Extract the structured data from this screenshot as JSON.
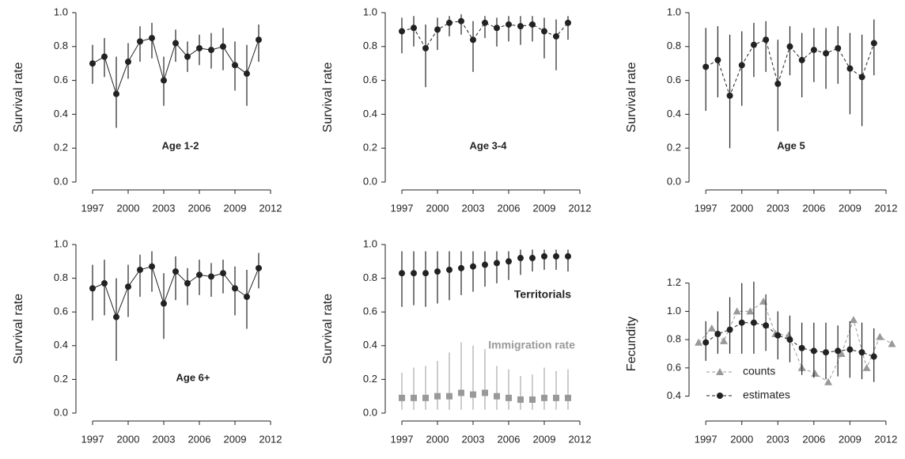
{
  "chart_data": [
    {
      "type": "line",
      "ylabel": "Survival rate",
      "annotation": "Age 1-2",
      "x": [
        1997,
        1998,
        1999,
        2000,
        2001,
        2002,
        2003,
        2004,
        2005,
        2006,
        2007,
        2008,
        2009,
        2010,
        2011
      ],
      "series": [
        {
          "color": "#222222",
          "marker": "circle",
          "line_style": "solid",
          "values": [
            0.7,
            0.74,
            0.52,
            0.71,
            0.83,
            0.85,
            0.6,
            0.82,
            0.74,
            0.79,
            0.78,
            0.8,
            0.69,
            0.64,
            0.84
          ],
          "lower": [
            0.58,
            0.62,
            0.32,
            0.61,
            0.71,
            0.73,
            0.45,
            0.71,
            0.65,
            0.69,
            0.67,
            0.66,
            0.54,
            0.45,
            0.71
          ],
          "upper": [
            0.81,
            0.85,
            0.74,
            0.82,
            0.92,
            0.94,
            0.74,
            0.9,
            0.83,
            0.87,
            0.88,
            0.91,
            0.83,
            0.81,
            0.93
          ]
        }
      ],
      "xlim": [
        1996,
        2012
      ],
      "xticks": [
        1997,
        2000,
        2003,
        2006,
        2009,
        2012
      ],
      "ylim": [
        0,
        1
      ],
      "yticks": [
        {
          "value": 0,
          "label": "0.0"
        },
        0.2,
        0.4,
        0.6,
        0.8,
        {
          "value": 1,
          "label": "1.0"
        }
      ]
    },
    {
      "type": "line",
      "ylabel": "Survival rate",
      "annotation": "Age 3-4",
      "x": [
        1997,
        1998,
        1999,
        2000,
        2001,
        2002,
        2003,
        2004,
        2005,
        2006,
        2007,
        2008,
        2009,
        2010,
        2011
      ],
      "series": [
        {
          "color": "#222222",
          "marker": "circle",
          "line_style": "dashed",
          "values": [
            0.89,
            0.91,
            0.79,
            0.9,
            0.94,
            0.95,
            0.84,
            0.94,
            0.91,
            0.93,
            0.92,
            0.93,
            0.89,
            0.86,
            0.94
          ],
          "lower": [
            0.76,
            0.8,
            0.56,
            0.78,
            0.86,
            0.87,
            0.65,
            0.85,
            0.8,
            0.83,
            0.81,
            0.83,
            0.73,
            0.66,
            0.84
          ],
          "upper": [
            0.97,
            0.98,
            0.93,
            0.97,
            0.98,
            0.99,
            0.95,
            0.98,
            0.97,
            0.98,
            0.98,
            0.98,
            0.97,
            0.96,
            0.98
          ]
        }
      ],
      "xlim": [
        1996,
        2012
      ],
      "xticks": [
        1997,
        2000,
        2003,
        2006,
        2009,
        2012
      ],
      "ylim": [
        0,
        1
      ],
      "yticks": [
        {
          "value": 0,
          "label": "0.0"
        },
        0.2,
        0.4,
        0.6,
        0.8,
        {
          "value": 1,
          "label": "1.0"
        }
      ]
    },
    {
      "type": "line",
      "ylabel": "Survival rate",
      "annotation": "Age 5",
      "x": [
        1997,
        1998,
        1999,
        2000,
        2001,
        2002,
        2003,
        2004,
        2005,
        2006,
        2007,
        2008,
        2009,
        2010,
        2011
      ],
      "series": [
        {
          "color": "#222222",
          "marker": "circle",
          "line_style": "dashed",
          "values": [
            0.68,
            0.72,
            0.51,
            0.69,
            0.81,
            0.84,
            0.58,
            0.8,
            0.72,
            0.78,
            0.76,
            0.79,
            0.67,
            0.62,
            0.82
          ],
          "lower": [
            0.42,
            0.5,
            0.2,
            0.45,
            0.62,
            0.65,
            0.3,
            0.63,
            0.5,
            0.59,
            0.55,
            0.58,
            0.4,
            0.33,
            0.63
          ],
          "upper": [
            0.91,
            0.92,
            0.87,
            0.89,
            0.94,
            0.95,
            0.84,
            0.92,
            0.88,
            0.91,
            0.91,
            0.92,
            0.88,
            0.87,
            0.96
          ]
        }
      ],
      "xlim": [
        1996,
        2012
      ],
      "xticks": [
        1997,
        2000,
        2003,
        2006,
        2009,
        2012
      ],
      "ylim": [
        0,
        1
      ],
      "yticks": [
        {
          "value": 0,
          "label": "0.0"
        },
        0.2,
        0.4,
        0.6,
        0.8,
        {
          "value": 1,
          "label": "1.0"
        }
      ]
    },
    {
      "type": "line",
      "ylabel": "Survival rate",
      "annotation": "Age 6+",
      "x": [
        1997,
        1998,
        1999,
        2000,
        2001,
        2002,
        2003,
        2004,
        2005,
        2006,
        2007,
        2008,
        2009,
        2010,
        2011
      ],
      "series": [
        {
          "color": "#222222",
          "marker": "circle",
          "line_style": "solid",
          "values": [
            0.74,
            0.77,
            0.57,
            0.75,
            0.85,
            0.87,
            0.65,
            0.84,
            0.77,
            0.82,
            0.81,
            0.83,
            0.74,
            0.69,
            0.86
          ],
          "lower": [
            0.55,
            0.58,
            0.31,
            0.57,
            0.69,
            0.72,
            0.44,
            0.67,
            0.64,
            0.7,
            0.69,
            0.71,
            0.58,
            0.5,
            0.74
          ],
          "upper": [
            0.88,
            0.91,
            0.8,
            0.88,
            0.94,
            0.96,
            0.83,
            0.93,
            0.86,
            0.91,
            0.89,
            0.91,
            0.87,
            0.85,
            0.95
          ]
        }
      ],
      "xlim": [
        1996,
        2012
      ],
      "xticks": [
        1997,
        2000,
        2003,
        2006,
        2009,
        2012
      ],
      "ylim": [
        0,
        1
      ],
      "yticks": [
        {
          "value": 0,
          "label": "0.0"
        },
        0.2,
        0.4,
        0.6,
        0.8,
        {
          "value": 1,
          "label": "1.0"
        }
      ]
    },
    {
      "type": "line",
      "ylabel": "Survival rate",
      "x": [
        1997,
        1998,
        1999,
        2000,
        2001,
        2002,
        2003,
        2004,
        2005,
        2006,
        2007,
        2008,
        2009,
        2010,
        2011
      ],
      "series": [
        {
          "name": "Territorials",
          "color": "#222222",
          "marker": "circle",
          "line_style": "none",
          "values": [
            0.83,
            0.83,
            0.83,
            0.84,
            0.85,
            0.86,
            0.87,
            0.88,
            0.89,
            0.9,
            0.92,
            0.92,
            0.93,
            0.93,
            0.93
          ],
          "lower": [
            0.63,
            0.64,
            0.63,
            0.65,
            0.67,
            0.7,
            0.72,
            0.75,
            0.77,
            0.79,
            0.82,
            0.84,
            0.85,
            0.85,
            0.84
          ],
          "upper": [
            0.96,
            0.96,
            0.96,
            0.96,
            0.96,
            0.96,
            0.96,
            0.96,
            0.96,
            0.96,
            0.97,
            0.97,
            0.97,
            0.97,
            0.97
          ]
        },
        {
          "name": "Immigration rate",
          "color": "#999999",
          "marker": "square",
          "line_style": "none",
          "values": [
            0.09,
            0.09,
            0.09,
            0.1,
            0.1,
            0.12,
            0.11,
            0.12,
            0.1,
            0.09,
            0.08,
            0.08,
            0.09,
            0.09,
            0.09
          ],
          "lower": [
            0.02,
            0.02,
            0.02,
            0.02,
            0.02,
            0.02,
            0.02,
            0.02,
            0.02,
            0.02,
            0.02,
            0.02,
            0.02,
            0.02,
            0.02
          ],
          "upper": [
            0.24,
            0.27,
            0.28,
            0.31,
            0.36,
            0.42,
            0.4,
            0.38,
            0.28,
            0.26,
            0.22,
            0.23,
            0.27,
            0.25,
            0.26
          ]
        }
      ],
      "xlim": [
        1996,
        2012
      ],
      "xticks": [
        1997,
        2000,
        2003,
        2006,
        2009,
        2012
      ],
      "ylim": [
        0,
        1
      ],
      "yticks": [
        {
          "value": 0,
          "label": "0.0"
        },
        0.2,
        0.4,
        0.6,
        0.8,
        {
          "value": 1,
          "label": "1.0"
        }
      ]
    },
    {
      "type": "line",
      "ylabel": "Fecundity",
      "x": [
        1997,
        1998,
        1999,
        2000,
        2001,
        2002,
        2003,
        2004,
        2005,
        2006,
        2007,
        2008,
        2009,
        2010,
        2011
      ],
      "series": [
        {
          "name": "counts",
          "color": "#999999",
          "marker": "triangle",
          "line_style": "dashed",
          "x": [
            1996.4,
            1997.5,
            1998.5,
            1999.6,
            2000.7,
            2001.8,
            2002.8,
            2003.9,
            2005.0,
            2006.1,
            2007.2,
            2008.3,
            2009.3,
            2010.4,
            2011.5,
            2012.5
          ],
          "values": [
            0.78,
            0.88,
            0.79,
            1.0,
            1.0,
            1.07,
            0.84,
            0.83,
            0.6,
            0.56,
            0.5,
            0.7,
            0.94,
            0.6,
            0.82,
            0.77
          ]
        },
        {
          "name": "estimates",
          "color": "#222222",
          "marker": "circle",
          "line_style": "dashed",
          "values": [
            0.78,
            0.84,
            0.87,
            0.92,
            0.92,
            0.9,
            0.83,
            0.8,
            0.74,
            0.72,
            0.71,
            0.72,
            0.73,
            0.71,
            0.68
          ],
          "lower": [
            0.65,
            0.7,
            0.7,
            0.7,
            0.7,
            0.72,
            0.66,
            0.64,
            0.55,
            0.53,
            0.52,
            0.54,
            0.53,
            0.52,
            0.5
          ],
          "upper": [
            0.93,
            1.0,
            1.1,
            1.2,
            1.21,
            1.12,
            1.0,
            0.97,
            0.92,
            0.92,
            0.92,
            0.9,
            0.93,
            0.92,
            0.88
          ]
        }
      ],
      "xlim": [
        1996,
        2012.6
      ],
      "xticks": [
        1997,
        2000,
        2003,
        2006,
        2009,
        2012
      ],
      "ylim": [
        0.28,
        1.26
      ],
      "yticks": [
        0.4,
        0.6,
        0.8,
        {
          "value": 1,
          "label": "1.0"
        },
        1.2
      ]
    }
  ]
}
